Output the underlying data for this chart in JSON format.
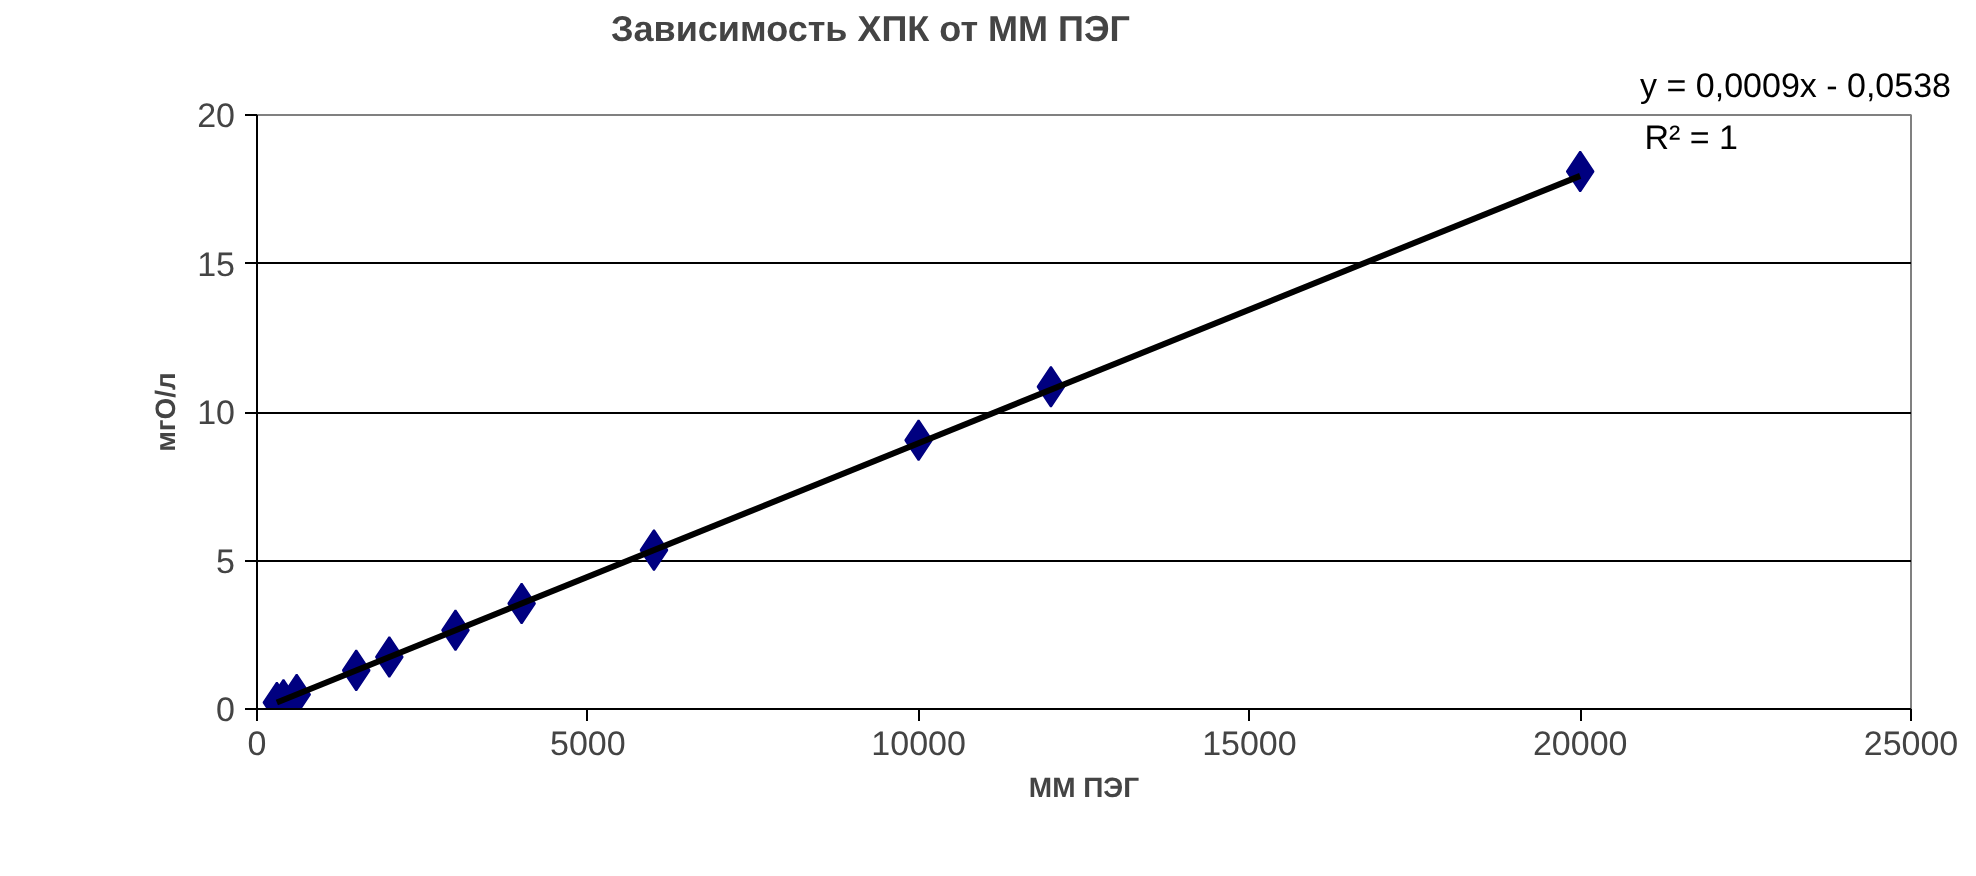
{
  "chart_data": {
    "type": "scatter",
    "title": "Зависимость ХПК от ММ ПЭГ",
    "xlabel": "ММ ПЭГ",
    "ylabel": "мгО/л",
    "x": [
      300,
      400,
      600,
      1500,
      2000,
      3000,
      4000,
      6000,
      10000,
      12000,
      20000
    ],
    "series": [
      {
        "color": "#000080",
        "values": [
          0.22,
          0.31,
          0.49,
          1.3,
          1.75,
          2.65,
          3.55,
          5.35,
          9.05,
          10.85,
          18.1
        ],
        "marker": "diamond"
      },
      {
        "type": "line",
        "color": "#000000",
        "x": [
          300,
          20000
        ],
        "values": [
          0.22,
          17.95
        ],
        "marker": "none"
      }
    ],
    "xlim": [
      0,
      25000
    ],
    "ylim": [
      0,
      20
    ],
    "xticks": [
      0,
      5000,
      10000,
      15000,
      20000,
      25000
    ],
    "yticks": [
      0,
      5,
      10,
      15,
      20
    ],
    "grid": "y",
    "annotations": [
      "y = 0,0009x - 0,0538",
      "R² = 1"
    ]
  }
}
